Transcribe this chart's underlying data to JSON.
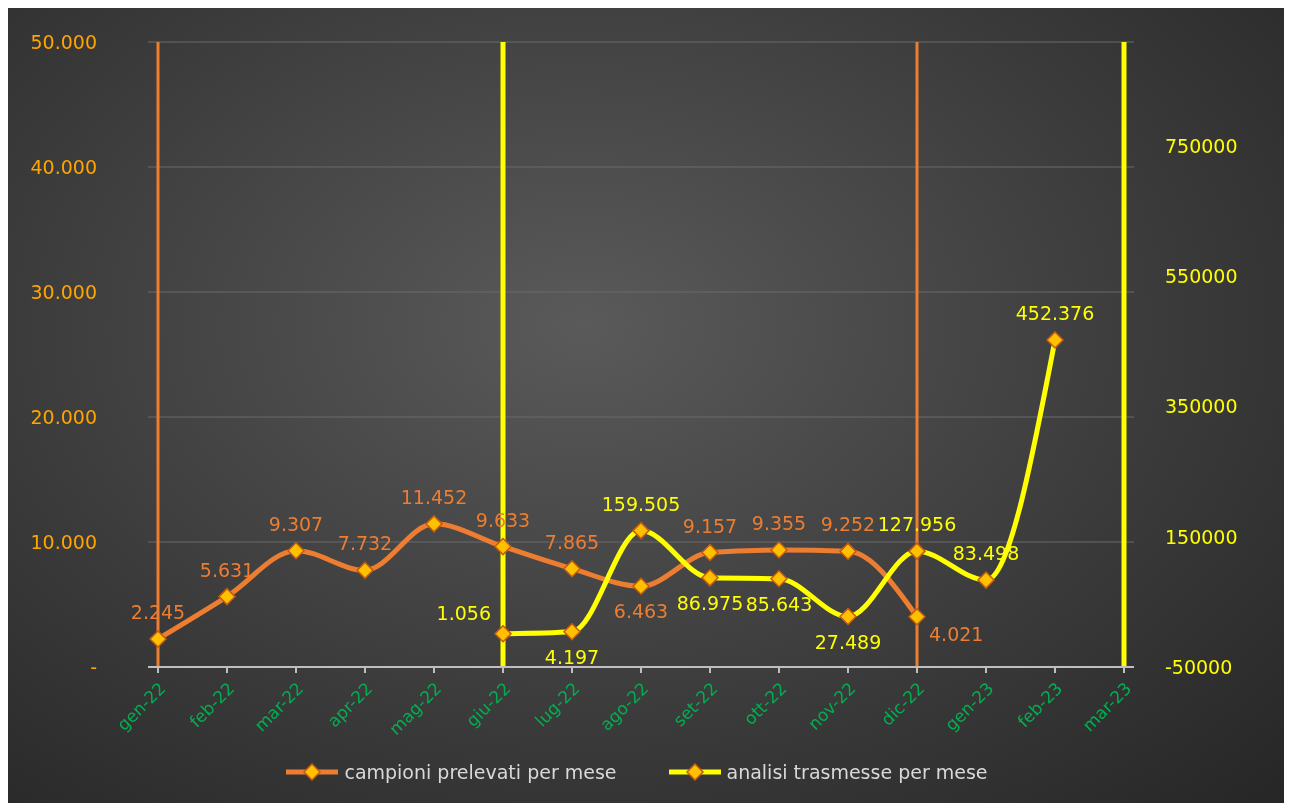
{
  "chart_data": {
    "type": "line",
    "categories": [
      "gen-22",
      "feb-22",
      "mar-22",
      "apr-22",
      "mag-22",
      "giu-22",
      "lug-22",
      "ago-22",
      "set-22",
      "ott-22",
      "nov-22",
      "dic-22",
      "gen-23",
      "feb-23",
      "mar-23"
    ],
    "series": [
      {
        "name": "campioni prelevati per mese",
        "color": "#ed7d31",
        "values": [
          2245,
          5631,
          9307,
          7732,
          11452,
          9633,
          7865,
          6463,
          9157,
          9355,
          9252,
          4021,
          null,
          null,
          null
        ],
        "value_labels": [
          "2.245",
          "5.631",
          "9.307",
          "7.732",
          "11.452",
          "9.633",
          "7.865",
          "6.463",
          "9.157",
          "9.355",
          "9.252",
          "4.021",
          null,
          null,
          null
        ]
      },
      {
        "name": "analisi trasmesse per mese",
        "color": "#ffff00",
        "axis": "y2",
        "values": [
          null,
          null,
          null,
          null,
          null,
          1056,
          4197,
          159505,
          86975,
          85643,
          27489,
          127956,
          83498,
          452376,
          null
        ],
        "value_labels": [
          null,
          null,
          null,
          null,
          null,
          "1.056",
          "4.197",
          "159.505",
          "86.975",
          "85.643",
          "27.489",
          "127.956",
          "83.498",
          "452.376",
          null
        ]
      }
    ],
    "ylim": [
      0,
      50000
    ],
    "yticks": [
      {
        "value": 0,
        "label": "-"
      },
      {
        "value": 10000,
        "label": "10.000"
      },
      {
        "value": 20000,
        "label": "20.000"
      },
      {
        "value": 30000,
        "label": "30.000"
      },
      {
        "value": 40000,
        "label": "40.000"
      },
      {
        "value": 50000,
        "label": "50.000"
      }
    ],
    "y2lim": [
      -50000,
      910000
    ],
    "y2ticks": [
      -50000,
      150000,
      350000,
      550000,
      750000
    ],
    "ref_lines": [
      {
        "axis": "x",
        "value": "gen-22",
        "color": "#ed7d31"
      },
      {
        "axis": "x",
        "value": "giu-22",
        "color": "#ffff00"
      },
      {
        "axis": "x",
        "value": "dic-22",
        "color": "#ed7d31"
      },
      {
        "axis": "x",
        "value": "mar-23",
        "color": "#ffff00"
      }
    ],
    "grid": "y",
    "legend": "bottom",
    "marker": "diamond",
    "line_style": "solid"
  }
}
